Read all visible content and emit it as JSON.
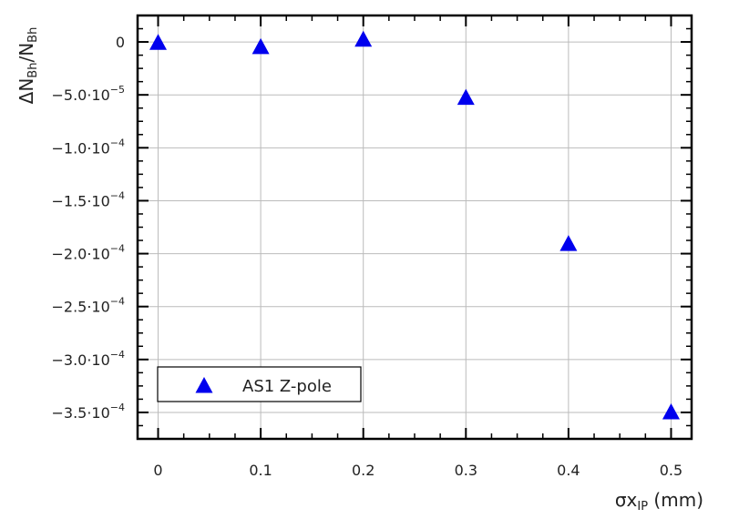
{
  "chart_data": {
    "type": "scatter",
    "xlabel": {
      "main": "σx",
      "sub": "IP",
      "unit": " (mm)"
    },
    "ylabel": {
      "pre": "ΔN",
      "sub1": "Bh",
      "mid": "/N",
      "sub2": "Bh"
    },
    "xlim": [
      -0.02,
      0.52
    ],
    "ylim": [
      -0.000375,
      2.5e-05
    ],
    "grid": true,
    "legend_position": "bottom-left",
    "x_ticks": [
      {
        "value": 0,
        "label": "0"
      },
      {
        "value": 0.1,
        "label": "0.1"
      },
      {
        "value": 0.2,
        "label": "0.2"
      },
      {
        "value": 0.3,
        "label": "0.3"
      },
      {
        "value": 0.4,
        "label": "0.4"
      },
      {
        "value": 0.5,
        "label": "0.5"
      }
    ],
    "y_ticks": [
      {
        "value": 0,
        "label": "0",
        "exp": ""
      },
      {
        "value": -5e-05,
        "label": "−5.0·10",
        "exp": "−5"
      },
      {
        "value": -0.0001,
        "label": "−1.0·10",
        "exp": "−4"
      },
      {
        "value": -0.00015,
        "label": "−1.5·10",
        "exp": "−4"
      },
      {
        "value": -0.0002,
        "label": "−2.0·10",
        "exp": "−4"
      },
      {
        "value": -0.00025,
        "label": "−2.5·10",
        "exp": "−4"
      },
      {
        "value": -0.0003,
        "label": "−3.0·10",
        "exp": "−4"
      },
      {
        "value": -0.00035,
        "label": "−3.5·10",
        "exp": "−4"
      }
    ],
    "series": [
      {
        "name": "AS1 Z-pole",
        "color": "#0000ee",
        "marker": "triangle-up",
        "x": [
          0,
          0.1,
          0.2,
          0.3,
          0.4,
          0.5
        ],
        "y": [
          -1e-06,
          -5e-06,
          2e-06,
          -5.3e-05,
          -0.000191,
          -0.00035
        ]
      }
    ]
  }
}
